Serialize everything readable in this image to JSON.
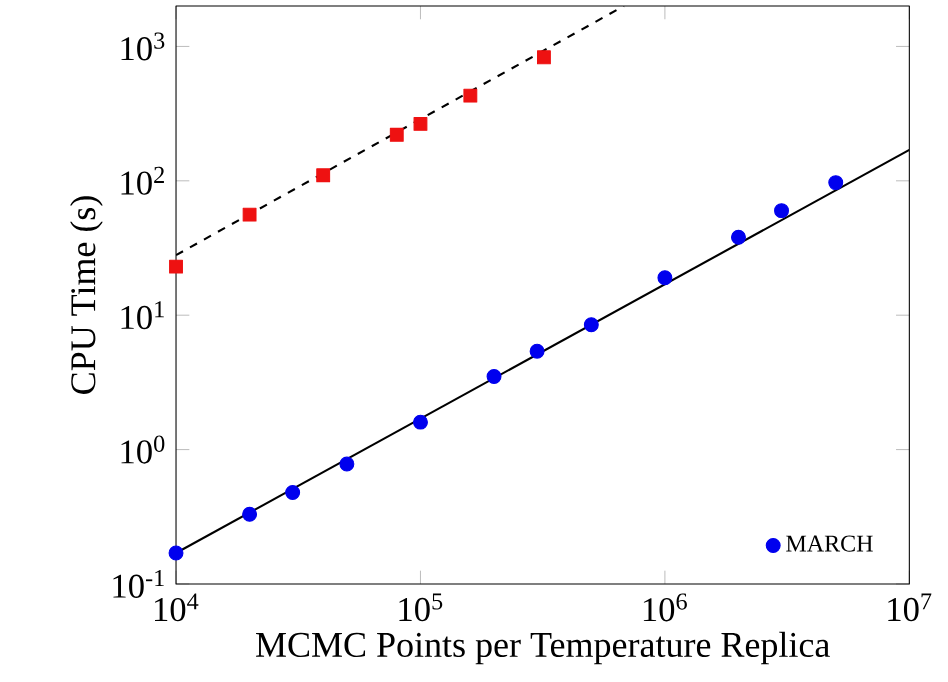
{
  "chart_data": {
    "type": "scatter",
    "xlabel": "MCMC Points per Temperature Replica",
    "ylabel": "CPU Time (s)",
    "log": "xy",
    "grid": false,
    "legend": "bottom right",
    "xlim": [
      10000,
      10000000
    ],
    "ylim": [
      0.1,
      2000
    ],
    "xticks": [
      {
        "value": 10000,
        "label": "10$^{4}$"
      },
      {
        "value": 100000,
        "label": "10$^{5}$"
      },
      {
        "value": 1000000,
        "label": "10$^{6}$"
      },
      {
        "value": 10000000,
        "label": "10$^{7}$"
      }
    ],
    "yticks": [
      {
        "value": 0.1,
        "label": "10$^{-1}$"
      },
      {
        "value": 1,
        "label": "10$^{0}$"
      },
      {
        "value": 10,
        "label": "10$^{1}$"
      },
      {
        "value": 100,
        "label": "10$^{2}$"
      },
      {
        "value": 1000,
        "label": "10$^{3}$"
      }
    ],
    "series": [
      {
        "name": "MARCH",
        "marker": "circle",
        "color": "#0000ee",
        "x": [
          10000,
          20000,
          30000,
          50000,
          100000,
          200000,
          300000,
          500000,
          1000000,
          2000000,
          3000000,
          5000000
        ],
        "values": [
          0.17,
          0.33,
          0.48,
          0.78,
          1.6,
          3.5,
          5.4,
          8.5,
          19,
          38,
          60,
          97
        ]
      },
      {
        "marker": "square",
        "color": "#ee1111",
        "x": [
          10000,
          20000,
          40000,
          80000,
          100000,
          160000,
          320000
        ],
        "values": [
          23,
          56,
          110,
          220,
          265,
          430,
          830
        ]
      },
      {
        "type": "line",
        "marker": "none",
        "line_style": "solid",
        "color": "#000000",
        "x": [
          10000,
          10000000
        ],
        "values": [
          0.17,
          170
        ]
      },
      {
        "type": "line",
        "marker": "none",
        "line_style": "dashed",
        "color": "#000000",
        "x": [
          10000,
          680000
        ],
        "values": [
          28,
          2000
        ]
      }
    ]
  }
}
